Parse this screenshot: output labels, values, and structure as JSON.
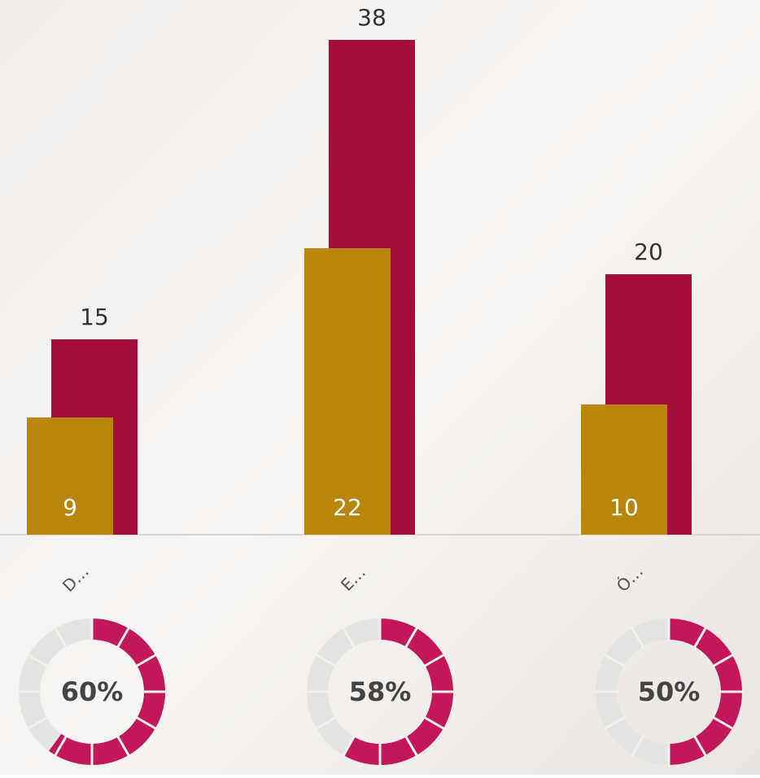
{
  "chart_data": [
    {
      "type": "bar",
      "categories": [
        "D…",
        "E…",
        "Ó…"
      ],
      "series": [
        {
          "color": "#a50d3c",
          "values": [
            15,
            38,
            20
          ]
        },
        {
          "color": "#b8860b",
          "values": [
            9,
            22,
            10
          ]
        }
      ],
      "ylim": [
        0,
        40
      ]
    },
    {
      "type": "donut",
      "values": [
        60,
        58,
        50
      ],
      "value_labels": [
        "60%",
        "58%",
        "50%"
      ],
      "ylim": [
        0,
        100
      ],
      "color": "#c2185b"
    }
  ]
}
